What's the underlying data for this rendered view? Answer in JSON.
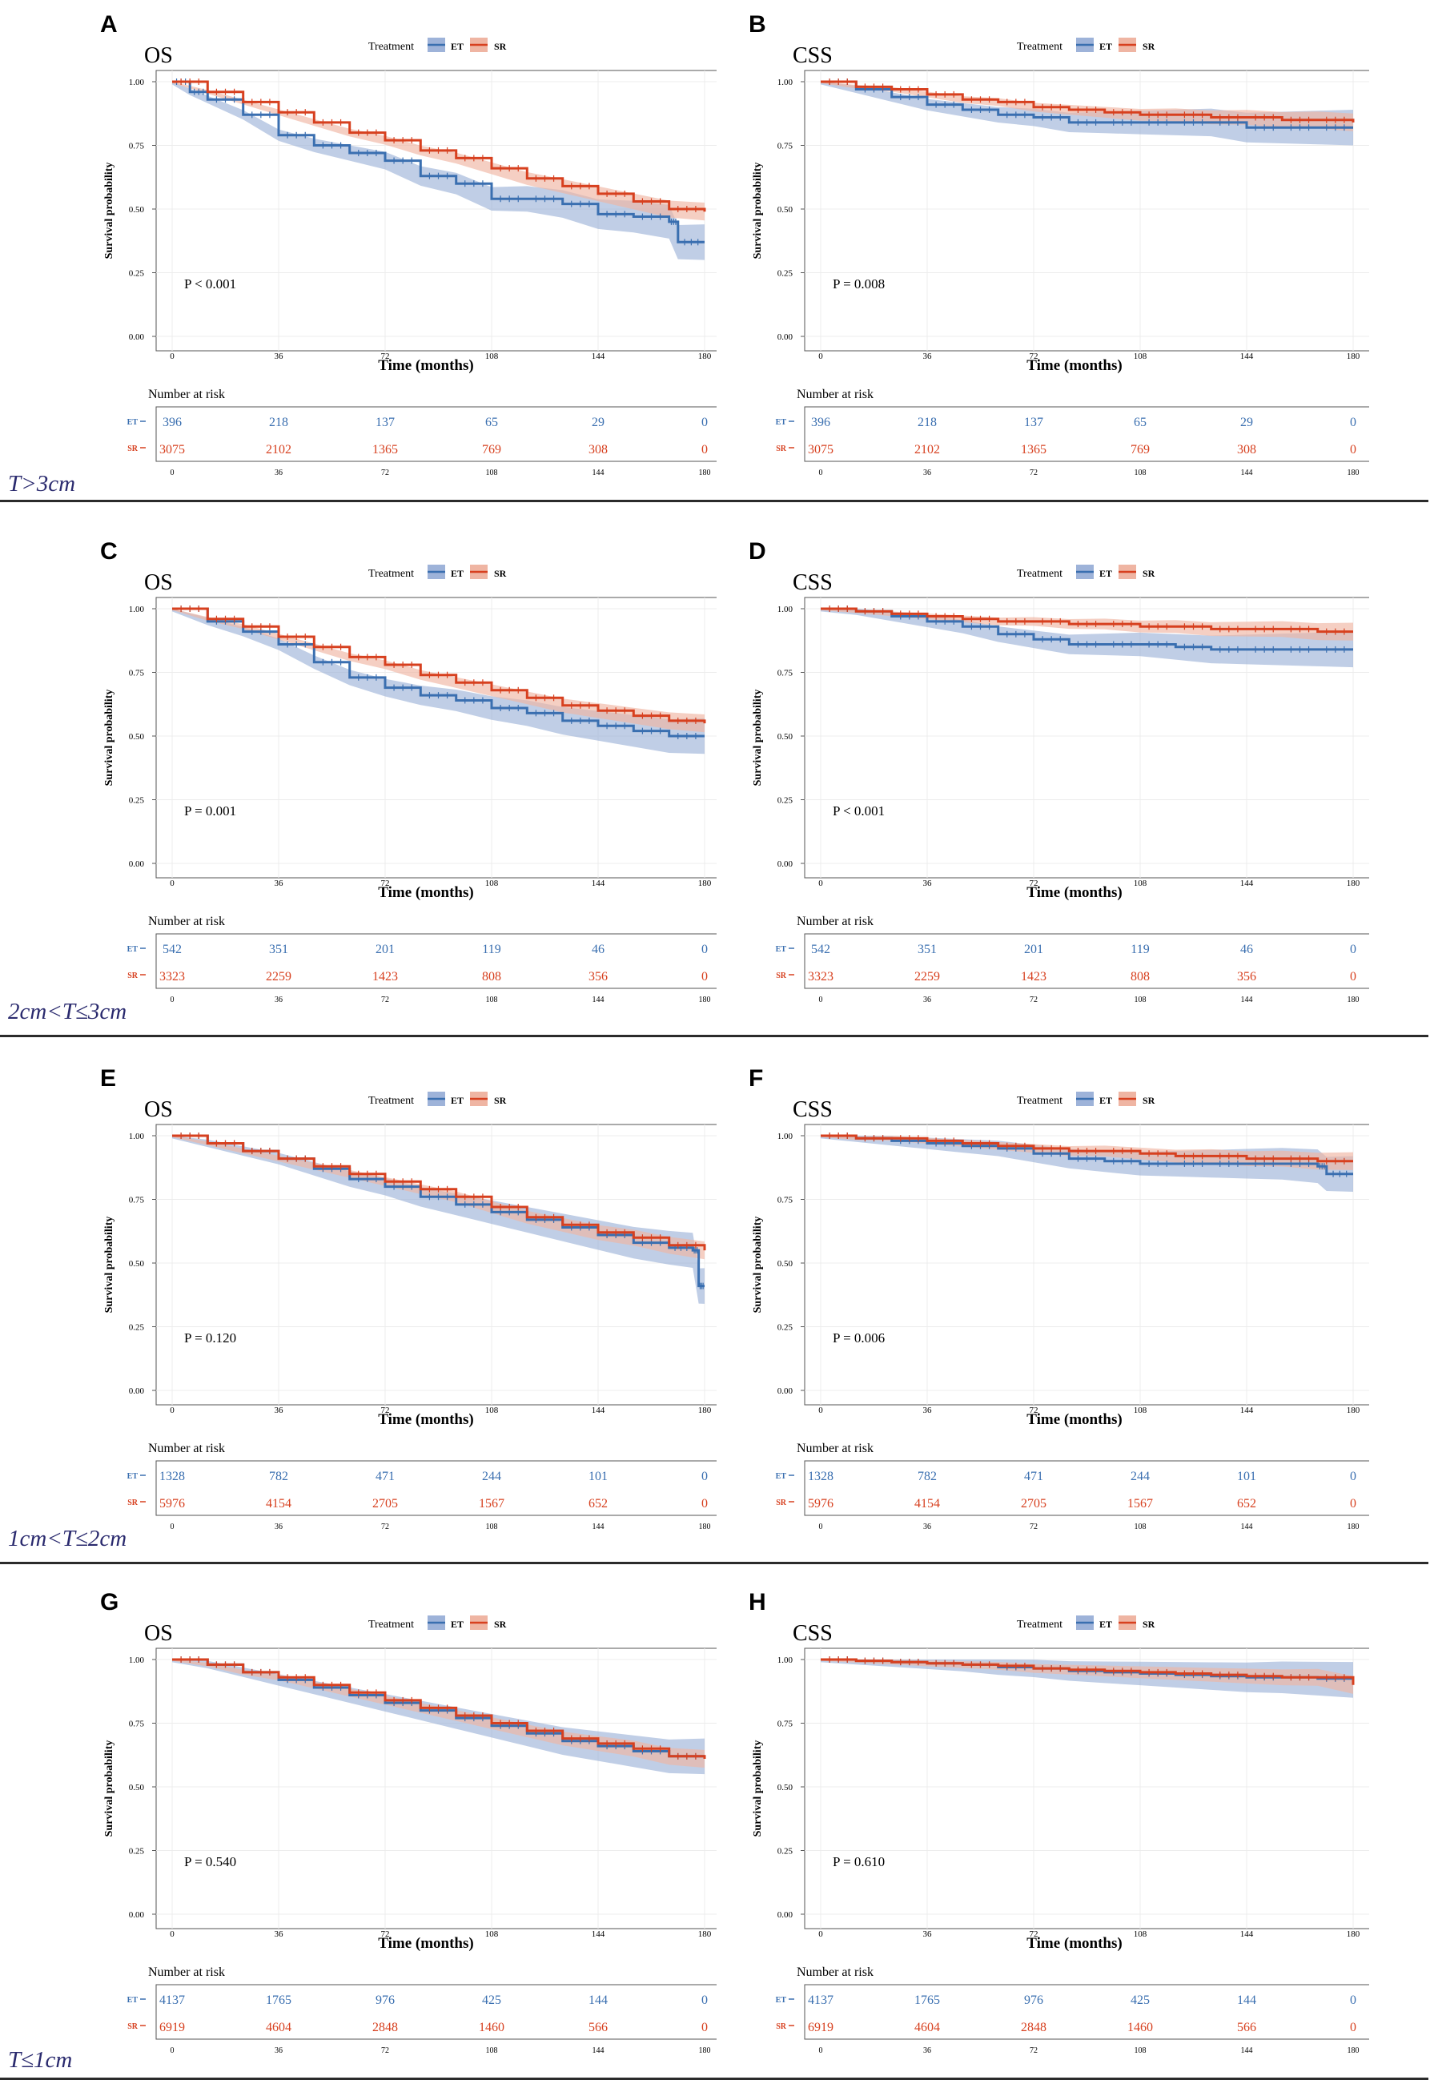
{
  "figure": {
    "colors": {
      "ET": "#3a6fb0",
      "SR": "#d7401f",
      "ET_band": "#9eb3d9",
      "SR_band": "#efb5a3",
      "label": "#2a2a6e"
    },
    "common": {
      "legend_title": "Treatment",
      "legend_et": "ET",
      "legend_sr": "SR",
      "xlabel": "Time (months)",
      "ylabel": "Survival probability",
      "risk_title": "Number at risk",
      "x_ticks": [
        0,
        36,
        72,
        108,
        144,
        180
      ],
      "y_ticks": [
        "0.00",
        "0.25",
        "0.50",
        "0.75",
        "1.00"
      ]
    },
    "groups": [
      {
        "label": "T>3cm"
      },
      {
        "label": "2cm<T≤3cm"
      },
      {
        "label": "1cm<T≤2cm"
      },
      {
        "label": "T≤1cm"
      }
    ]
  },
  "chart_data": [
    {
      "type": "line",
      "panel": "A",
      "title": "OS",
      "pvalue": "P < 0.001",
      "xlim": [
        0,
        180
      ],
      "ylim": [
        0,
        1
      ],
      "series": [
        {
          "name": "ET",
          "x": [
            0,
            6,
            12,
            24,
            36,
            48,
            60,
            72,
            84,
            96,
            108,
            120,
            132,
            144,
            156,
            168,
            171,
            180
          ],
          "values": [
            1,
            0.96,
            0.93,
            0.87,
            0.79,
            0.75,
            0.72,
            0.69,
            0.63,
            0.6,
            0.54,
            0.54,
            0.52,
            0.48,
            0.47,
            0.45,
            0.37,
            0.37
          ]
        },
        {
          "name": "SR",
          "x": [
            0,
            12,
            24,
            36,
            48,
            60,
            72,
            84,
            96,
            108,
            120,
            132,
            144,
            156,
            168,
            180
          ],
          "values": [
            1,
            0.96,
            0.92,
            0.88,
            0.84,
            0.8,
            0.77,
            0.73,
            0.7,
            0.66,
            0.62,
            0.59,
            0.56,
            0.53,
            0.5,
            0.49
          ]
        }
      ],
      "risk": {
        "ET": [
          "396",
          "218",
          "137",
          "65",
          "29",
          "0"
        ],
        "SR": [
          "3075",
          "2102",
          "1365",
          "769",
          "308",
          "0"
        ]
      }
    },
    {
      "type": "line",
      "panel": "B",
      "title": "CSS",
      "pvalue": "P = 0.008",
      "xlim": [
        0,
        180
      ],
      "ylim": [
        0,
        1
      ],
      "series": [
        {
          "name": "ET",
          "x": [
            0,
            12,
            24,
            36,
            48,
            60,
            72,
            84,
            96,
            108,
            120,
            132,
            144,
            156,
            168,
            180
          ],
          "values": [
            1,
            0.97,
            0.94,
            0.91,
            0.89,
            0.87,
            0.86,
            0.84,
            0.84,
            0.84,
            0.84,
            0.84,
            0.82,
            0.82,
            0.82,
            0.82
          ]
        },
        {
          "name": "SR",
          "x": [
            0,
            12,
            24,
            36,
            48,
            60,
            72,
            84,
            96,
            108,
            120,
            132,
            144,
            156,
            168,
            180
          ],
          "values": [
            1,
            0.98,
            0.97,
            0.95,
            0.93,
            0.92,
            0.9,
            0.89,
            0.88,
            0.87,
            0.87,
            0.86,
            0.86,
            0.85,
            0.85,
            0.84
          ]
        }
      ],
      "risk": {
        "ET": [
          "396",
          "218",
          "137",
          "65",
          "29",
          "0"
        ],
        "SR": [
          "3075",
          "2102",
          "1365",
          "769",
          "308",
          "0"
        ]
      }
    },
    {
      "type": "line",
      "panel": "C",
      "title": "OS",
      "pvalue": "P = 0.001",
      "xlim": [
        0,
        180
      ],
      "ylim": [
        0,
        1
      ],
      "series": [
        {
          "name": "ET",
          "x": [
            0,
            12,
            24,
            36,
            48,
            60,
            72,
            84,
            96,
            108,
            120,
            132,
            144,
            156,
            168,
            180
          ],
          "values": [
            1,
            0.95,
            0.91,
            0.86,
            0.79,
            0.73,
            0.69,
            0.66,
            0.64,
            0.61,
            0.59,
            0.56,
            0.54,
            0.52,
            0.5,
            0.5
          ]
        },
        {
          "name": "SR",
          "x": [
            0,
            12,
            24,
            36,
            48,
            60,
            72,
            84,
            96,
            108,
            120,
            132,
            144,
            156,
            168,
            180
          ],
          "values": [
            1,
            0.96,
            0.93,
            0.89,
            0.85,
            0.81,
            0.78,
            0.74,
            0.71,
            0.68,
            0.65,
            0.62,
            0.6,
            0.58,
            0.56,
            0.55
          ]
        }
      ],
      "risk": {
        "ET": [
          "542",
          "351",
          "201",
          "119",
          "46",
          "0"
        ],
        "SR": [
          "3323",
          "2259",
          "1423",
          "808",
          "356",
          "0"
        ]
      }
    },
    {
      "type": "line",
      "panel": "D",
      "title": "CSS",
      "pvalue": "P < 0.001",
      "xlim": [
        0,
        180
      ],
      "ylim": [
        0,
        1
      ],
      "series": [
        {
          "name": "ET",
          "x": [
            0,
            12,
            24,
            36,
            48,
            60,
            72,
            84,
            96,
            108,
            120,
            132,
            144,
            156,
            168,
            180
          ],
          "values": [
            1,
            0.99,
            0.97,
            0.95,
            0.93,
            0.9,
            0.88,
            0.86,
            0.86,
            0.86,
            0.85,
            0.84,
            0.84,
            0.84,
            0.84,
            0.84
          ]
        },
        {
          "name": "SR",
          "x": [
            0,
            12,
            24,
            36,
            48,
            60,
            72,
            84,
            96,
            108,
            120,
            132,
            144,
            156,
            168,
            180
          ],
          "values": [
            1,
            0.99,
            0.98,
            0.97,
            0.96,
            0.95,
            0.95,
            0.94,
            0.94,
            0.93,
            0.93,
            0.92,
            0.92,
            0.92,
            0.91,
            0.91
          ]
        }
      ],
      "risk": {
        "ET": [
          "542",
          "351",
          "201",
          "119",
          "46",
          "0"
        ],
        "SR": [
          "3323",
          "2259",
          "1423",
          "808",
          "356",
          "0"
        ]
      }
    },
    {
      "type": "line",
      "panel": "E",
      "title": "OS",
      "pvalue": "P = 0.120",
      "xlim": [
        0,
        180
      ],
      "ylim": [
        0,
        1
      ],
      "series": [
        {
          "name": "ET",
          "x": [
            0,
            12,
            24,
            36,
            48,
            60,
            72,
            84,
            96,
            108,
            120,
            132,
            144,
            156,
            168,
            176,
            178,
            180
          ],
          "values": [
            1,
            0.97,
            0.94,
            0.91,
            0.87,
            0.83,
            0.8,
            0.76,
            0.73,
            0.7,
            0.67,
            0.64,
            0.61,
            0.58,
            0.56,
            0.55,
            0.41,
            0.41
          ]
        },
        {
          "name": "SR",
          "x": [
            0,
            12,
            24,
            36,
            48,
            60,
            72,
            84,
            96,
            108,
            120,
            132,
            144,
            156,
            168,
            180
          ],
          "values": [
            1,
            0.97,
            0.94,
            0.91,
            0.88,
            0.85,
            0.82,
            0.79,
            0.76,
            0.72,
            0.68,
            0.65,
            0.62,
            0.6,
            0.57,
            0.55
          ]
        }
      ],
      "risk": {
        "ET": [
          "1328",
          "782",
          "471",
          "244",
          "101",
          "0"
        ],
        "SR": [
          "5976",
          "4154",
          "2705",
          "1567",
          "652",
          "0"
        ]
      }
    },
    {
      "type": "line",
      "panel": "F",
      "title": "CSS",
      "pvalue": "P = 0.006",
      "xlim": [
        0,
        180
      ],
      "ylim": [
        0,
        1
      ],
      "series": [
        {
          "name": "ET",
          "x": [
            0,
            12,
            24,
            36,
            48,
            60,
            72,
            84,
            96,
            108,
            120,
            132,
            144,
            156,
            168,
            171,
            180
          ],
          "values": [
            1,
            0.99,
            0.98,
            0.97,
            0.96,
            0.95,
            0.93,
            0.91,
            0.9,
            0.89,
            0.89,
            0.89,
            0.89,
            0.89,
            0.88,
            0.85,
            0.85
          ]
        },
        {
          "name": "SR",
          "x": [
            0,
            12,
            24,
            36,
            48,
            60,
            72,
            84,
            96,
            108,
            120,
            132,
            144,
            156,
            168,
            180
          ],
          "values": [
            1,
            0.99,
            0.99,
            0.98,
            0.97,
            0.96,
            0.95,
            0.94,
            0.94,
            0.93,
            0.92,
            0.92,
            0.91,
            0.91,
            0.9,
            0.9
          ]
        }
      ],
      "risk": {
        "ET": [
          "1328",
          "782",
          "471",
          "244",
          "101",
          "0"
        ],
        "SR": [
          "5976",
          "4154",
          "2705",
          "1567",
          "652",
          "0"
        ]
      }
    },
    {
      "type": "line",
      "panel": "G",
      "title": "OS",
      "pvalue": "P = 0.540",
      "xlim": [
        0,
        180
      ],
      "ylim": [
        0,
        1
      ],
      "series": [
        {
          "name": "ET",
          "x": [
            0,
            12,
            24,
            36,
            48,
            60,
            72,
            84,
            96,
            108,
            120,
            132,
            144,
            156,
            168,
            180
          ],
          "values": [
            1,
            0.98,
            0.95,
            0.92,
            0.89,
            0.86,
            0.83,
            0.8,
            0.77,
            0.74,
            0.71,
            0.68,
            0.66,
            0.64,
            0.62,
            0.62
          ]
        },
        {
          "name": "SR",
          "x": [
            0,
            12,
            24,
            36,
            48,
            60,
            72,
            84,
            96,
            108,
            120,
            132,
            144,
            156,
            168,
            180
          ],
          "values": [
            1,
            0.98,
            0.95,
            0.93,
            0.9,
            0.87,
            0.84,
            0.81,
            0.78,
            0.75,
            0.72,
            0.69,
            0.67,
            0.65,
            0.62,
            0.61
          ]
        }
      ],
      "risk": {
        "ET": [
          "4137",
          "1765",
          "976",
          "425",
          "144",
          "0"
        ],
        "SR": [
          "6919",
          "4604",
          "2848",
          "1460",
          "566",
          "0"
        ]
      }
    },
    {
      "type": "line",
      "panel": "H",
      "title": "CSS",
      "pvalue": "P = 0.610",
      "xlim": [
        0,
        180
      ],
      "ylim": [
        0,
        1
      ],
      "series": [
        {
          "name": "ET",
          "x": [
            0,
            12,
            24,
            36,
            48,
            60,
            72,
            84,
            96,
            108,
            120,
            132,
            144,
            156,
            168,
            180
          ],
          "values": [
            1,
            0.995,
            0.99,
            0.985,
            0.98,
            0.97,
            0.965,
            0.955,
            0.95,
            0.945,
            0.94,
            0.935,
            0.93,
            0.93,
            0.925,
            0.92
          ]
        },
        {
          "name": "SR",
          "x": [
            0,
            12,
            24,
            36,
            48,
            60,
            72,
            84,
            96,
            108,
            120,
            132,
            144,
            156,
            168,
            180
          ],
          "values": [
            1,
            0.995,
            0.99,
            0.985,
            0.98,
            0.975,
            0.965,
            0.96,
            0.955,
            0.95,
            0.945,
            0.94,
            0.935,
            0.93,
            0.93,
            0.9
          ]
        }
      ],
      "risk": {
        "ET": [
          "4137",
          "1765",
          "976",
          "425",
          "144",
          "0"
        ],
        "SR": [
          "6919",
          "4604",
          "2848",
          "1460",
          "566",
          "0"
        ]
      }
    }
  ]
}
